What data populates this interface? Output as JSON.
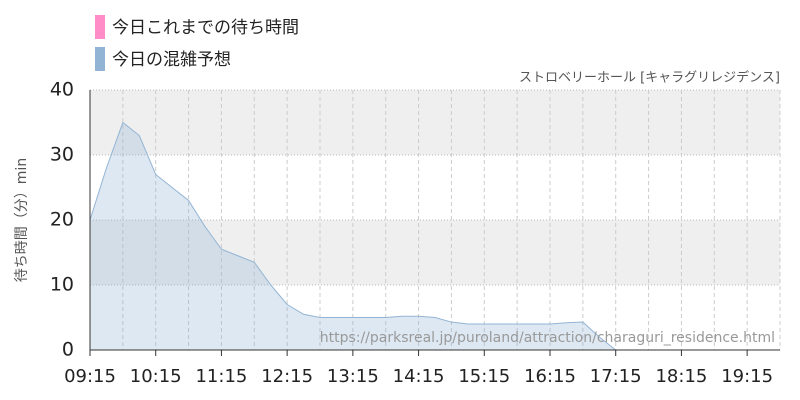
{
  "chart_data": {
    "type": "area",
    "subtitle": "ストロベリーホール [キャラグリレジデンス]",
    "y_label": "待ち時間（分）min",
    "watermark": "https://parksreal.jp/puroland/attraction/charaguri_residence.html",
    "legend": [
      {
        "name": "今日これまでの待ち時間",
        "color": "#ff8cc6"
      },
      {
        "name": "今日の混雑予想",
        "color": "#92b4d4"
      }
    ],
    "x": [
      "09:15",
      "09:30",
      "09:45",
      "10:00",
      "10:15",
      "10:30",
      "10:45",
      "11:00",
      "11:15",
      "11:30",
      "11:45",
      "12:00",
      "12:15",
      "12:30",
      "12:45",
      "13:00",
      "13:15",
      "13:30",
      "13:45",
      "14:00",
      "14:15",
      "14:30",
      "14:45",
      "15:00",
      "15:15",
      "15:30",
      "15:45",
      "16:00",
      "16:15",
      "16:30",
      "16:45",
      "17:00",
      "17:15",
      "17:30",
      "17:45",
      "18:00",
      "18:15",
      "18:30",
      "18:45",
      "19:00",
      "19:15",
      "19:30",
      "19:45"
    ],
    "series": [
      {
        "name": "今日の混雑予想",
        "color": "#92b4d4",
        "values": [
          20,
          28,
          35,
          33,
          27,
          25,
          23,
          19,
          15.5,
          14.5,
          13.5,
          10,
          7,
          5.5,
          5,
          5,
          5,
          5,
          5,
          5.2,
          5.2,
          5,
          4.3,
          4,
          4,
          4,
          4,
          4,
          4,
          4.2,
          4.3,
          2,
          0,
          0,
          0,
          0,
          0,
          0,
          0,
          0,
          0,
          0,
          0
        ]
      }
    ],
    "xlim": [
      "09:15",
      "19:45"
    ],
    "xticks": [
      "09:15",
      "10:15",
      "11:15",
      "12:15",
      "13:15",
      "14:15",
      "15:15",
      "16:15",
      "17:15",
      "18:15",
      "19:15"
    ],
    "ylim": [
      0,
      40
    ],
    "yticks": [
      0,
      10,
      20,
      30,
      40
    ],
    "grid": true
  }
}
